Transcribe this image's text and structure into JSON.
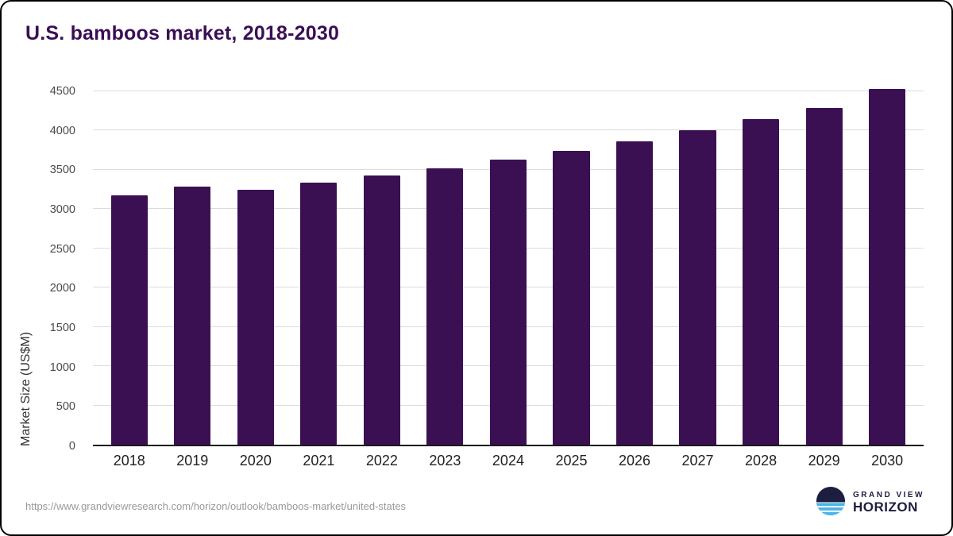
{
  "title": "U.S. bamboos market, 2018-2030",
  "chart_data": {
    "type": "bar",
    "title": "U.S. bamboos market, 2018-2030",
    "categories": [
      "2018",
      "2019",
      "2020",
      "2021",
      "2022",
      "2023",
      "2024",
      "2025",
      "2026",
      "2027",
      "2028",
      "2029",
      "2030"
    ],
    "values": [
      3170,
      3290,
      3250,
      3340,
      3430,
      3520,
      3630,
      3740,
      3860,
      4000,
      4140,
      4290,
      4530
    ],
    "xlabel": "",
    "ylabel": "Market Size (US$M)",
    "yticks": [
      0,
      500,
      1000,
      1500,
      2000,
      2500,
      3000,
      3500,
      4000,
      4500
    ],
    "ylim": [
      0,
      4500
    ],
    "grid": "horizontal",
    "legend": "none",
    "bar_color": "#3b1053"
  },
  "footer": {
    "url": "https://www.grandviewresearch.com/horizon/outlook/bamboos-market/united-states",
    "logo": {
      "top": "GRAND VIEW",
      "bottom": "HORIZON"
    }
  },
  "colors": {
    "title": "#3a0f55",
    "bar": "#3b1053",
    "gridline": "#dcdcdc",
    "axis": "#1a1a1a",
    "logo_navy": "#1d1d3f",
    "logo_blue": "#49b5e9"
  }
}
